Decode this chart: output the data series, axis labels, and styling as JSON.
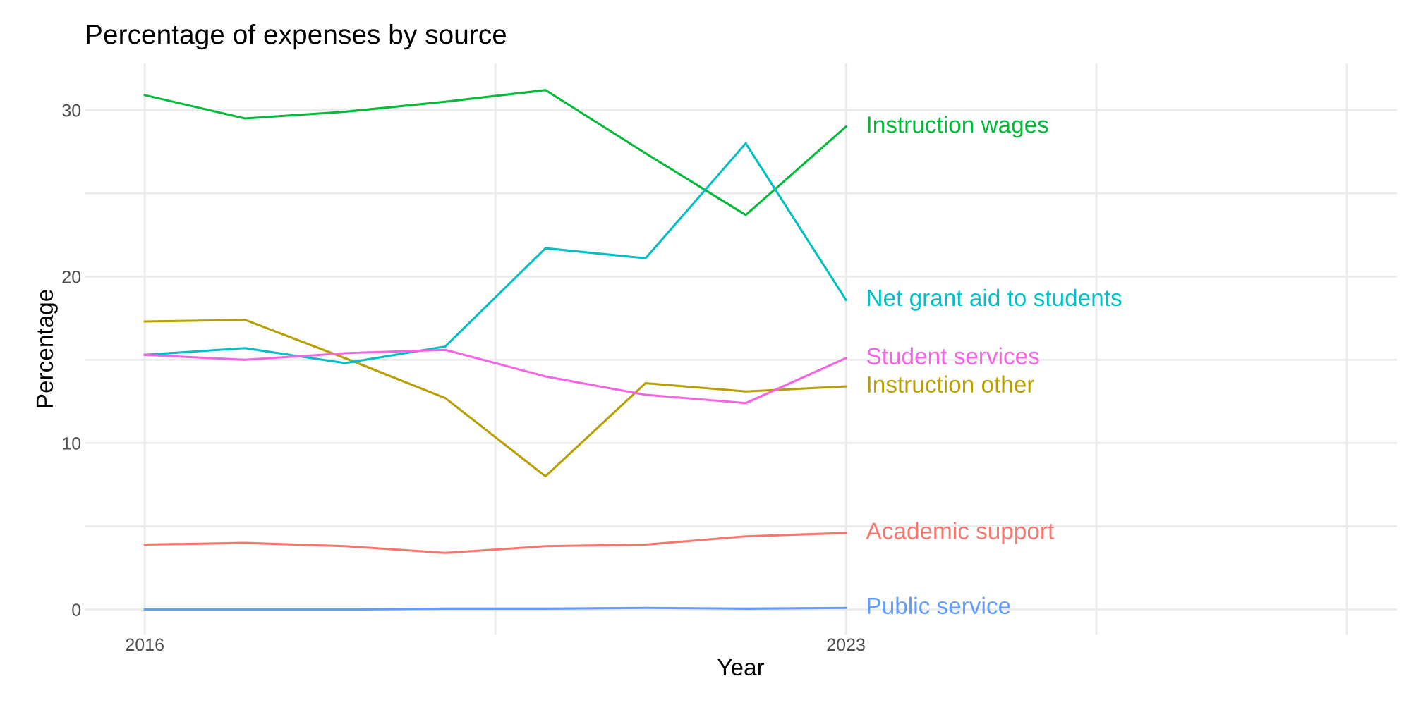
{
  "chart_data": {
    "type": "line",
    "title": "Percentage of expenses by source",
    "xlabel": "Year",
    "ylabel": "Percentage",
    "x": [
      2016,
      2017,
      2018,
      2019,
      2020,
      2021,
      2022,
      2023
    ],
    "series": [
      {
        "name": "Academic support",
        "color": "#F8766D",
        "values": [
          3.9,
          4.0,
          3.8,
          3.4,
          3.8,
          3.9,
          4.4,
          4.6
        ]
      },
      {
        "name": "Instruction other",
        "color": "#B79F00",
        "values": [
          17.3,
          17.4,
          15.1,
          12.7,
          8.0,
          13.6,
          13.1,
          13.4
        ]
      },
      {
        "name": "Instruction wages",
        "color": "#00BA38",
        "values": [
          30.9,
          29.5,
          29.9,
          30.5,
          31.2,
          27.4,
          23.7,
          29.0
        ]
      },
      {
        "name": "Net grant aid to students",
        "color": "#00BFC4",
        "values": [
          15.3,
          15.7,
          14.8,
          15.8,
          21.7,
          21.1,
          28.0,
          18.6
        ]
      },
      {
        "name": "Public service",
        "color": "#619CFF",
        "values": [
          0.0,
          0.0,
          0.0,
          0.05,
          0.05,
          0.1,
          0.05,
          0.1
        ]
      },
      {
        "name": "Student services",
        "color": "#F564E3",
        "values": [
          15.3,
          15.0,
          15.4,
          15.6,
          14.0,
          12.9,
          12.4,
          15.1
        ]
      }
    ],
    "xlim": [
      2015.4,
      2028.5
    ],
    "xticks": [
      2016,
      {
        "value": 2019.5,
        "label": null
      },
      2023,
      {
        "value": 2025.5,
        "label": null
      },
      {
        "value": 2028,
        "label": null
      }
    ],
    "ylim": [
      -1.5,
      32.8
    ],
    "yticks": [
      0,
      {
        "value": 5,
        "label": null
      },
      10,
      {
        "value": 15,
        "label": null
      },
      20,
      {
        "value": 25,
        "label": null
      },
      30
    ],
    "grid": true,
    "legend": false,
    "marker": "none",
    "line_style": "solid"
  }
}
